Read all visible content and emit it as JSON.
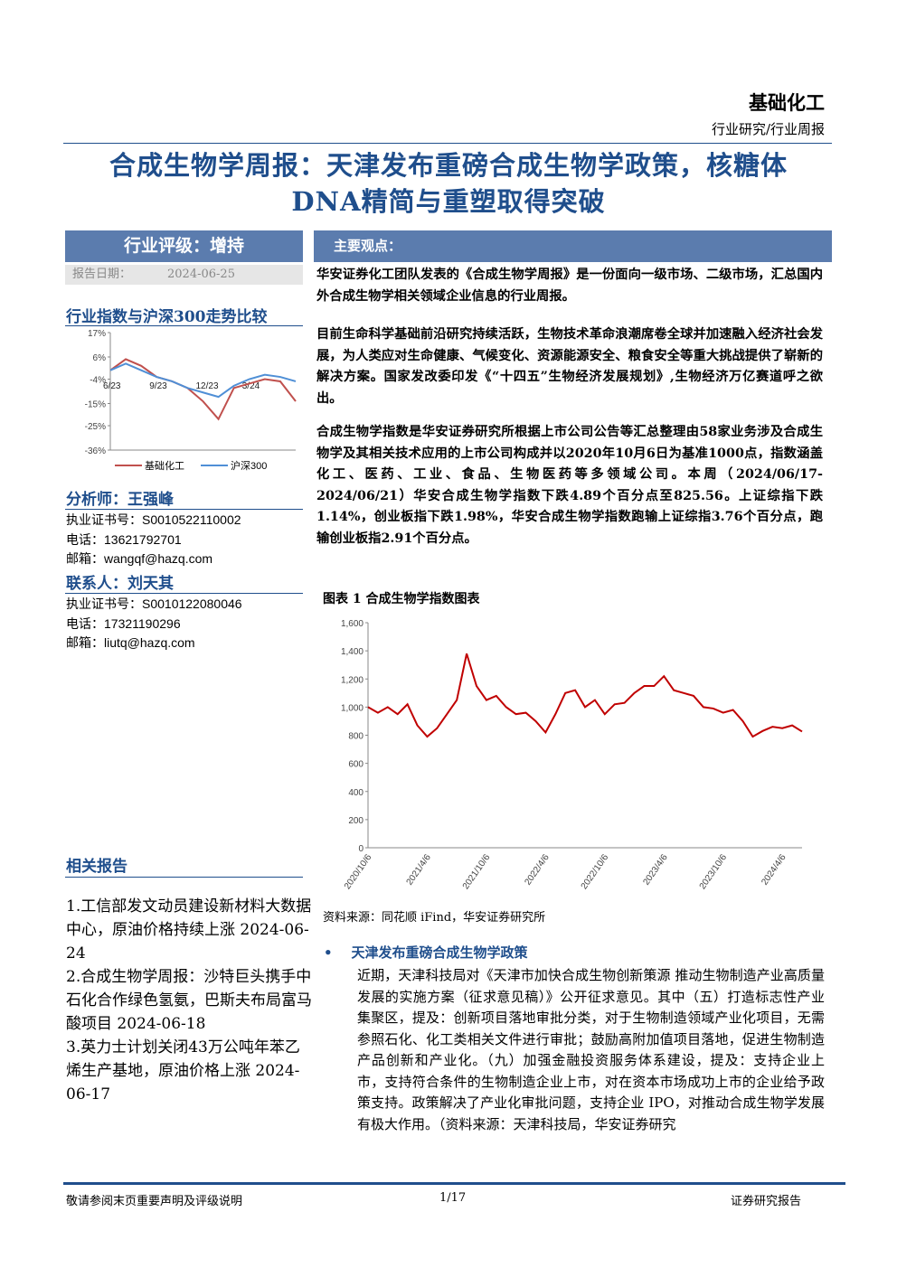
{
  "header": {
    "sector": "基础化工",
    "category": "行业研究/行业周报"
  },
  "title": "合成生物学周报：天津发布重磅合成生物学政策，核糖体DNA精简与重塑取得突破",
  "sidebar": {
    "rating": "行业评级：增持",
    "date_label": "报告日期：",
    "date": "2024-06-25",
    "index_chart": {
      "title": "行业指数与沪深300走势比较",
      "type": "line",
      "categories": [
        "6/23",
        null,
        null,
        "9/23",
        null,
        null,
        "12/23",
        null,
        null,
        "3/24",
        null,
        null,
        null
      ],
      "series": [
        {
          "name": "基础化工",
          "color": "#c0504d",
          "values": [
            0,
            5,
            2,
            -3,
            -5,
            -8,
            -14,
            -22,
            -8,
            -6,
            -4,
            -5,
            -14
          ]
        },
        {
          "name": "沪深300",
          "color": "#4f8fd6",
          "values": [
            0,
            3,
            0,
            -3,
            -5,
            -8,
            -10,
            -12,
            -7,
            -4,
            -2,
            -3,
            -5
          ]
        }
      ],
      "ylim": [
        -36,
        17
      ],
      "yticks": [
        {
          "value": 17,
          "label": "17%"
        },
        {
          "value": 6,
          "label": "6%"
        },
        {
          "value": -4,
          "label": "-4%"
        },
        {
          "value": -15,
          "label": "-15%"
        },
        {
          "value": -25,
          "label": "-25%"
        },
        {
          "value": -36,
          "label": "-36%"
        }
      ]
    },
    "analyst": {
      "heading": "分析师：王强峰",
      "lines": [
        "执业证书号：S0010522110002",
        "电话：13621792701",
        "邮箱：wangqf@hazq.com"
      ]
    },
    "contact": {
      "heading": "联系人：刘天其",
      "lines": [
        "执业证书号：S0010122080046",
        "电话：17321190296",
        "邮箱：liutq@hazq.com"
      ]
    },
    "related": {
      "heading": "相关报告",
      "items": [
        "1.工信部发文动员建设新材料大数据中心，原油价格持续上涨 2024-06-24",
        "2.合成生物学周报：沙特巨头携手中石化合作绿色氢氨，巴斯夫布局富马酸项目 2024-06-18",
        "3.英力士计划关闭43万公吨年苯乙烯生产基地，原油价格上涨 2024-06-17"
      ]
    }
  },
  "main": {
    "heading": "主要观点：",
    "paragraphs": [
      "华安证券化工团队发表的《合成生物学周报》是一份面向一级市场、二级市场，汇总国内外合成生物学相关领域企业信息的行业周报。",
      "目前生命科学基础前沿研究持续活跃，生物技术革命浪潮席卷全球并加速融入经济社会发展，为人类应对生命健康、气候变化、资源能源安全、粮食安全等重大挑战提供了崭新的解决方案。国家发改委印发《“十四五”生物经济发展规划》,生物经济万亿赛道呼之欲出。",
      "合成生物学指数是华安证券研究所根据上市公司公告等汇总整理由58家业务涉及合成生物学及其相关技术应用的上市公司构成并以2020年10月6日为基准1000点，指数涵盖化工、医药、工业、食品、生物医药等多领域公司。本周（2024/06/17-2024/06/21）华安合成生物学指数下跌4.89个百分点至825.56。上证综指下跌1.14%，创业板指下跌1.98%，华安合成生物学指数跑输上证综指3.76个百分点，跑输创业板指2.91个百分点。"
    ],
    "figure_caption": "图表 1 合成生物学指数图表",
    "figure_source": "资料来源：同花顺 iFind，华安证券研究所",
    "bullet_heading": "天津发布重磅合成生物学政策",
    "bullet_text": "近期，天津科技局对《天津市加快合成生物创新策源 推动生物制造产业高质量发展的实施方案（征求意见稿）》公开征求意见。其中（五）打造标志性产业集聚区，提及：创新项目落地审批分类，对于生物制造领域产业化项目，无需参照石化、化工类相关文件进行审批；鼓励高附加值项目落地，促进生物制造产品创新和产业化。（九）加强金融投资服务体系建设，提及：支持企业上市，支持符合条件的生物制造企业上市，对在资本市场成功上市的企业给予政策支持。政策解决了产业化审批问题，支持企业 IPO，对推动合成生物学发展有极大作用。（资料来源：天津科技局，华安证券研究"
  },
  "chart_data": {
    "type": "line",
    "categories": [
      "2020/10/6",
      null,
      null,
      null,
      null,
      null,
      "2021/4/6",
      null,
      null,
      null,
      null,
      null,
      "2021/10/6",
      null,
      null,
      null,
      null,
      null,
      "2022/4/6",
      null,
      null,
      null,
      null,
      null,
      "2022/10/6",
      null,
      null,
      null,
      null,
      null,
      "2023/4/6",
      null,
      null,
      null,
      null,
      null,
      "2023/10/6",
      null,
      null,
      null,
      null,
      null,
      "2024/4/6",
      null,
      null
    ],
    "series": [
      {
        "name": "合成生物学指数",
        "color": "#c00000",
        "values": [
          1000,
          960,
          1000,
          950,
          1020,
          870,
          790,
          850,
          950,
          1050,
          1380,
          1150,
          1050,
          1080,
          1000,
          950,
          960,
          900,
          820,
          950,
          1100,
          1120,
          1000,
          1050,
          950,
          1020,
          1030,
          1100,
          1150,
          1150,
          1220,
          1120,
          1100,
          1080,
          1000,
          990,
          960,
          980,
          900,
          790,
          830,
          860,
          850,
          870,
          826
        ]
      }
    ],
    "ylim": [
      0,
      1600
    ],
    "yticks": [
      0,
      200,
      400,
      600,
      800,
      {
        "value": 1000,
        "label": "1,000"
      },
      {
        "value": 1200,
        "label": "1,200"
      },
      {
        "value": 1400,
        "label": "1,400"
      },
      {
        "value": 1600,
        "label": "1,600"
      }
    ]
  },
  "footer": {
    "left": "敬请参阅末页重要声明及评级说明",
    "page": "1/17",
    "right": "证券研究报告"
  }
}
